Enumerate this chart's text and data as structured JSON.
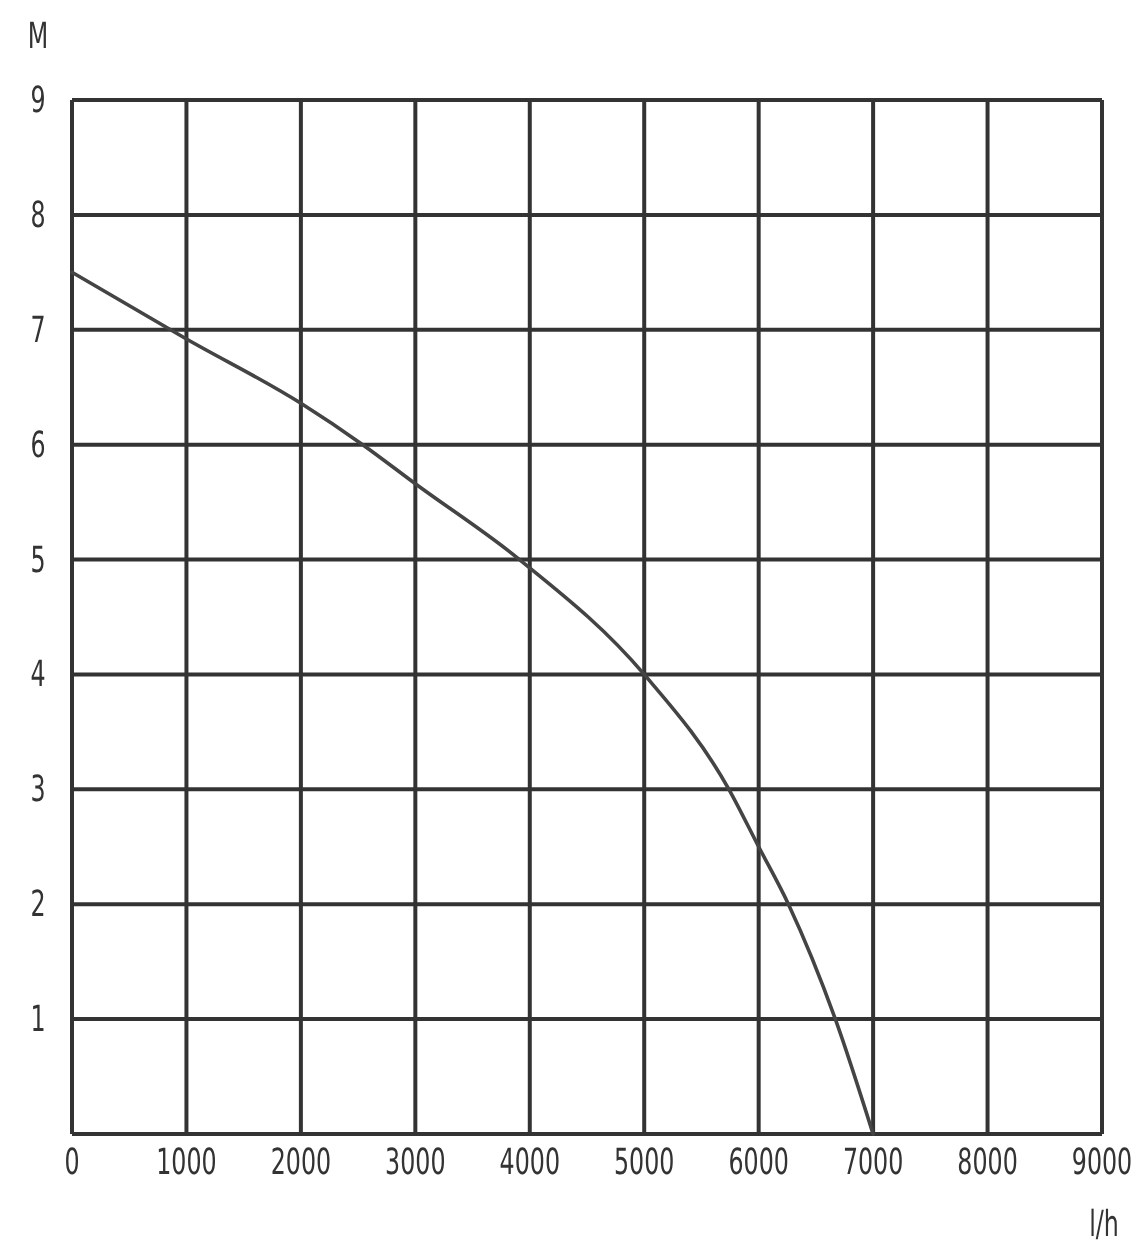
{
  "chart_data": {
    "type": "line",
    "x": [
      0,
      1000,
      2000,
      2540,
      3000,
      3910,
      5000,
      5740,
      6000,
      6260,
      6670,
      7000
    ],
    "values": [
      7.5,
      6.92,
      6.36,
      6.0,
      5.66,
      5.0,
      4.0,
      3.0,
      2.5,
      2.0,
      1.0,
      0
    ],
    "color": "#444444",
    "xlim": [
      0,
      9000
    ],
    "ylim": [
      0,
      9
    ],
    "xticks": [
      0,
      1000,
      2000,
      3000,
      4000,
      5000,
      6000,
      7000,
      8000,
      9000
    ],
    "yticks": [
      {
        "value": 0,
        "label": null
      },
      1,
      2,
      3,
      4,
      5,
      6,
      7,
      8,
      9
    ],
    "grid": true,
    "xlabel": "l/h",
    "ylabel": "M"
  }
}
